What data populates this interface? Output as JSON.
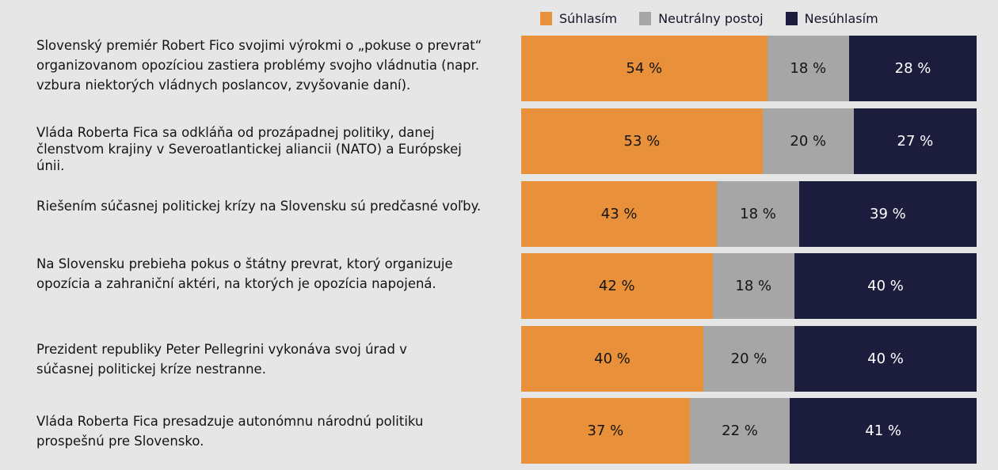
{
  "chart_data": {
    "type": "bar",
    "orientation": "horizontal",
    "stacked": true,
    "unit": "%",
    "legend_position": "top",
    "series": [
      {
        "name": "Súhlasím",
        "color": "#e8913a",
        "text_color": "#141414",
        "values": [
          54,
          53,
          43,
          42,
          40,
          37
        ]
      },
      {
        "name": "Neutrálny postoj",
        "color": "#a6a6a6",
        "text_color": "#141414",
        "values": [
          18,
          20,
          18,
          18,
          20,
          22
        ]
      },
      {
        "name": "Nesúhlasím",
        "color": "#1c1c3c",
        "text_color": "#ffffff",
        "values": [
          28,
          27,
          39,
          40,
          40,
          41
        ]
      }
    ],
    "categories": [
      "Slovenský premiér Robert Fico svojimi výrokmi o „pokuse o prevrat“ organizovanom opozíciou zastiera problémy svojho vládnutia (napr. vzbura niektorých vládnych poslancov, zvyšovanie daní).",
      "Vláda Roberta Fica sa odkláňa od prozápadnej politiky, danej členstvom krajiny v Severoatlantickej aliancii (NATO) a Európskej únii.",
      "Riešením súčasnej politickej krízy na Slovensku sú predčasné voľby.",
      "Na Slovensku prebieha pokus o štátny prevrat, ktorý organizuje opozícia a zahraniční aktéri, na ktorých je opozícia napojená.",
      "Prezident republiky Peter Pellegrini vykonáva svoj úrad v súčasnej politickej kríze nestranne.",
      "Vláda Roberta Fica presadzuje autonómnu národnú politiku prospešnú pre Slovensko."
    ],
    "xlim": [
      0,
      100
    ]
  }
}
